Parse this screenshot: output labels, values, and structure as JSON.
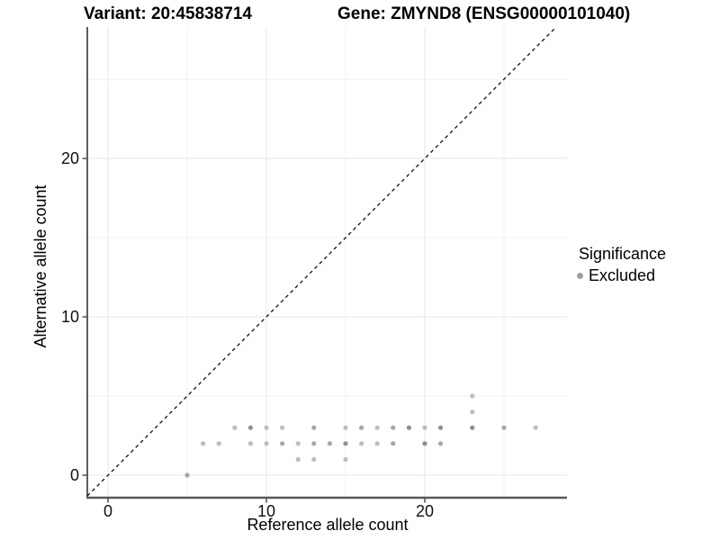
{
  "header": {
    "variant_title": "Variant: 20:45838714",
    "gene_title": "Gene: ZMYND8 (ENSG00000101040)"
  },
  "chart_data": {
    "type": "scatter",
    "title": "Variant: 20:45838714  /  Gene: ZMYND8 (ENSG00000101040)",
    "xlabel": "Reference allele count",
    "ylabel": "Alternative allele count",
    "xlim": [
      -1.31,
      28.98
    ],
    "ylim": [
      -1.42,
      28.3
    ],
    "xticks": [
      0,
      10,
      20
    ],
    "yticks": [
      0,
      10,
      20
    ],
    "minor_xticks": [
      5,
      15,
      25
    ],
    "minor_yticks": [
      5,
      15,
      25
    ],
    "grid": true,
    "identity_line": {
      "equation": "y = x",
      "style": "dashed",
      "color": "#111111"
    },
    "legend": {
      "title": "Significance",
      "position": "right",
      "items": [
        {
          "label": "Excluded",
          "color": "#a0a0a0"
        }
      ]
    },
    "point_colors": {
      "light": "#bdbdbd",
      "medium": "#a6a6a6",
      "dark": "#8f8f8f"
    },
    "series": [
      {
        "name": "Excluded",
        "points": [
          {
            "x": 5,
            "y": 0,
            "shade": "medium"
          },
          {
            "x": 12,
            "y": 1,
            "shade": "light"
          },
          {
            "x": 13,
            "y": 1,
            "shade": "light"
          },
          {
            "x": 15,
            "y": 1,
            "shade": "light"
          },
          {
            "x": 6,
            "y": 2,
            "shade": "light"
          },
          {
            "x": 7,
            "y": 2,
            "shade": "light"
          },
          {
            "x": 9,
            "y": 2,
            "shade": "light"
          },
          {
            "x": 10,
            "y": 2,
            "shade": "light"
          },
          {
            "x": 11,
            "y": 2,
            "shade": "medium"
          },
          {
            "x": 12,
            "y": 2,
            "shade": "light"
          },
          {
            "x": 13,
            "y": 2,
            "shade": "medium"
          },
          {
            "x": 14,
            "y": 2,
            "shade": "medium"
          },
          {
            "x": 15,
            "y": 2,
            "shade": "dark"
          },
          {
            "x": 16,
            "y": 2,
            "shade": "light"
          },
          {
            "x": 17,
            "y": 2,
            "shade": "light"
          },
          {
            "x": 18,
            "y": 2,
            "shade": "medium"
          },
          {
            "x": 20,
            "y": 2,
            "shade": "dark"
          },
          {
            "x": 21,
            "y": 2,
            "shade": "medium"
          },
          {
            "x": 8,
            "y": 3,
            "shade": "light"
          },
          {
            "x": 9,
            "y": 3,
            "shade": "dark"
          },
          {
            "x": 10,
            "y": 3,
            "shade": "light"
          },
          {
            "x": 11,
            "y": 3,
            "shade": "light"
          },
          {
            "x": 13,
            "y": 3,
            "shade": "medium"
          },
          {
            "x": 15,
            "y": 3,
            "shade": "light"
          },
          {
            "x": 16,
            "y": 3,
            "shade": "medium"
          },
          {
            "x": 17,
            "y": 3,
            "shade": "light"
          },
          {
            "x": 18,
            "y": 3,
            "shade": "medium"
          },
          {
            "x": 19,
            "y": 3,
            "shade": "dark"
          },
          {
            "x": 20,
            "y": 3,
            "shade": "light"
          },
          {
            "x": 21,
            "y": 3,
            "shade": "dark"
          },
          {
            "x": 23,
            "y": 3,
            "shade": "dark"
          },
          {
            "x": 25,
            "y": 3,
            "shade": "medium"
          },
          {
            "x": 27,
            "y": 3,
            "shade": "light"
          },
          {
            "x": 23,
            "y": 4,
            "shade": "light"
          },
          {
            "x": 23,
            "y": 5,
            "shade": "light"
          }
        ]
      }
    ]
  }
}
